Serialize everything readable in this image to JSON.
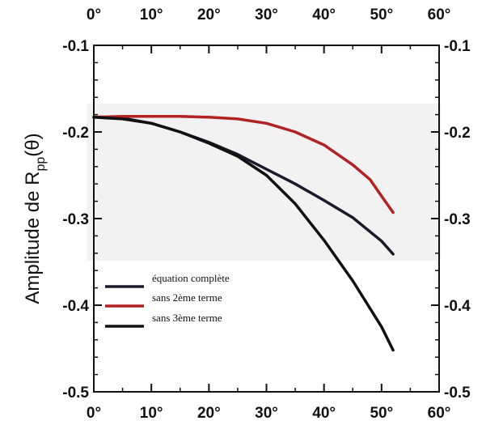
{
  "chart_data": {
    "type": "line",
    "ylabel_prefix": "Amplitude de R",
    "ylabel_sub": "pp",
    "ylabel_suffix": "(θ)",
    "xlim": [
      0,
      60
    ],
    "ylim": [
      -0.5,
      -0.1
    ],
    "x_ticks": [
      0,
      10,
      20,
      30,
      40,
      50,
      60
    ],
    "x_tick_labels": [
      "0°",
      "10°",
      "20°",
      "30°",
      "40°",
      "50°",
      "60°"
    ],
    "y_ticks": [
      -0.1,
      -0.2,
      -0.3,
      -0.4,
      -0.5
    ],
    "y_tick_labels": [
      "-0.1",
      "-0.2",
      "-0.3",
      "-0.4",
      "-0.5"
    ],
    "grid": false,
    "legend_position": "bottom-left",
    "series": [
      {
        "name": "équation complète",
        "color": "#1b1a2a",
        "x": [
          0,
          5,
          10,
          15,
          20,
          25,
          30,
          35,
          40,
          45,
          50,
          52
        ],
        "y": [
          -0.183,
          -0.184,
          -0.19,
          -0.2,
          -0.212,
          -0.226,
          -0.243,
          -0.26,
          -0.279,
          -0.299,
          -0.326,
          -0.341
        ]
      },
      {
        "name": "sans 2ème terme",
        "color": "#b22222",
        "x": [
          0,
          5,
          10,
          15,
          20,
          25,
          30,
          35,
          40,
          45,
          48,
          50,
          52
        ],
        "y": [
          -0.183,
          -0.182,
          -0.182,
          -0.182,
          -0.183,
          -0.185,
          -0.19,
          -0.2,
          -0.215,
          -0.238,
          -0.255,
          -0.274,
          -0.293
        ]
      },
      {
        "name": "sans 3ème terme",
        "color": "#111111",
        "x": [
          0,
          5,
          10,
          15,
          20,
          25,
          30,
          35,
          40,
          45,
          50,
          52
        ],
        "y": [
          -0.183,
          -0.185,
          -0.19,
          -0.2,
          -0.213,
          -0.228,
          -0.25,
          -0.283,
          -0.325,
          -0.372,
          -0.425,
          -0.452
        ]
      }
    ]
  }
}
